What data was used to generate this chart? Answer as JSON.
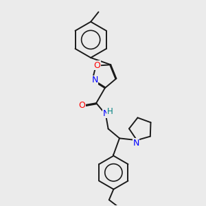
{
  "bg_color": "#ebebeb",
  "atom_colors": {
    "N": "#0000ff",
    "O": "#ff0000",
    "H": "#008080"
  },
  "line_color": "#1a1a1a",
  "line_width": 1.4,
  "font_size": 8.5
}
